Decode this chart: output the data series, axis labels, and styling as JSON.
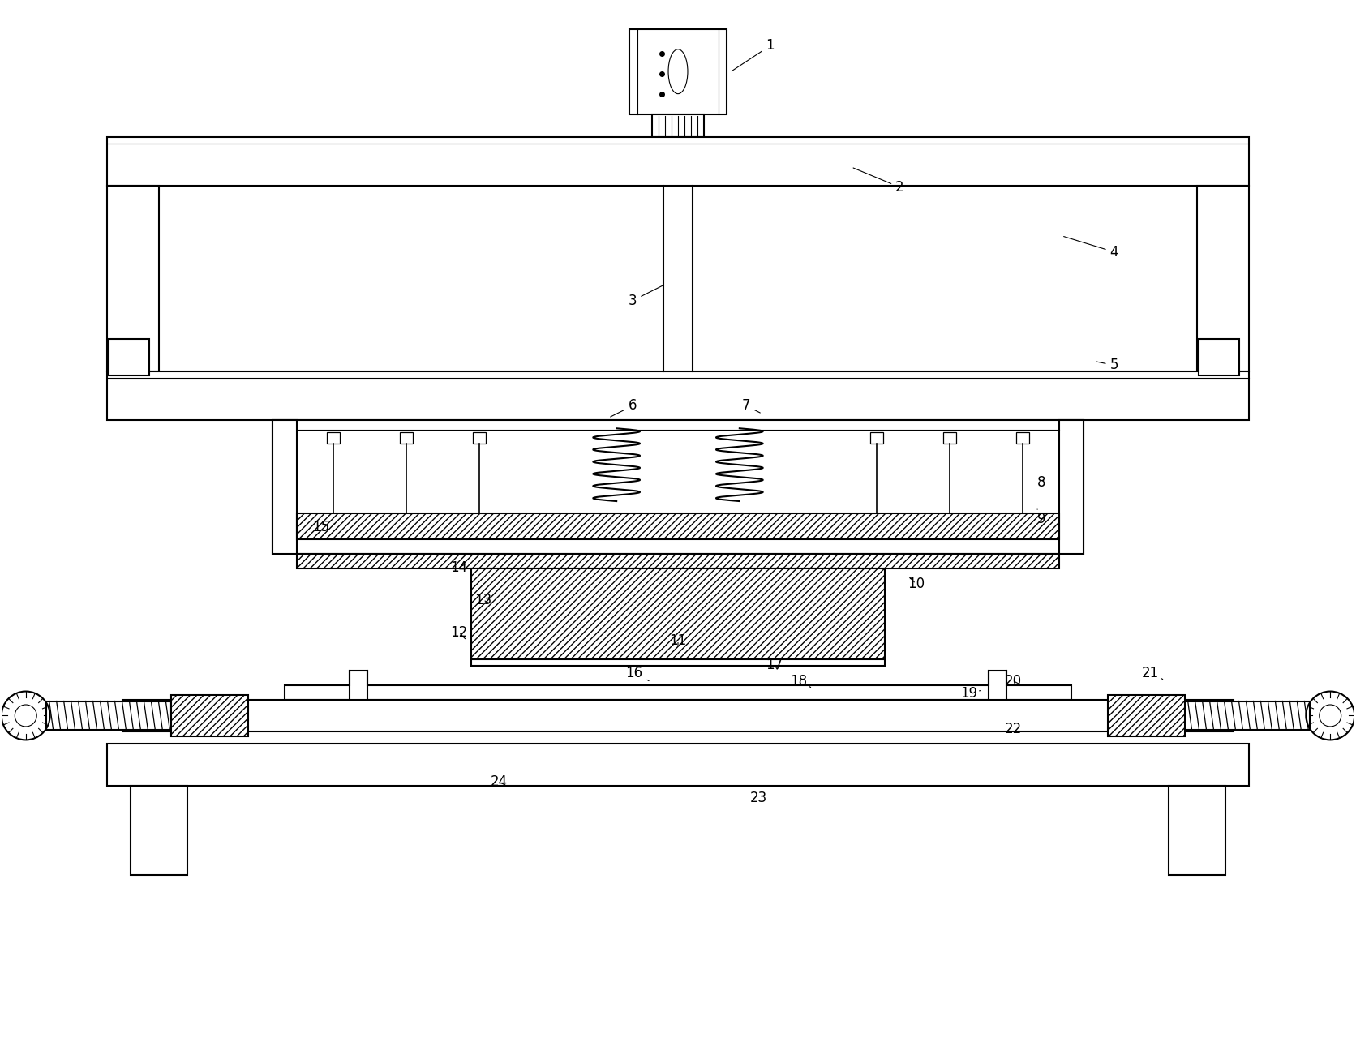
{
  "bg_color": "#ffffff",
  "lc": "#000000",
  "lw": 1.5,
  "fig_w": 16.72,
  "fig_h": 12.8,
  "label_fs": 12
}
